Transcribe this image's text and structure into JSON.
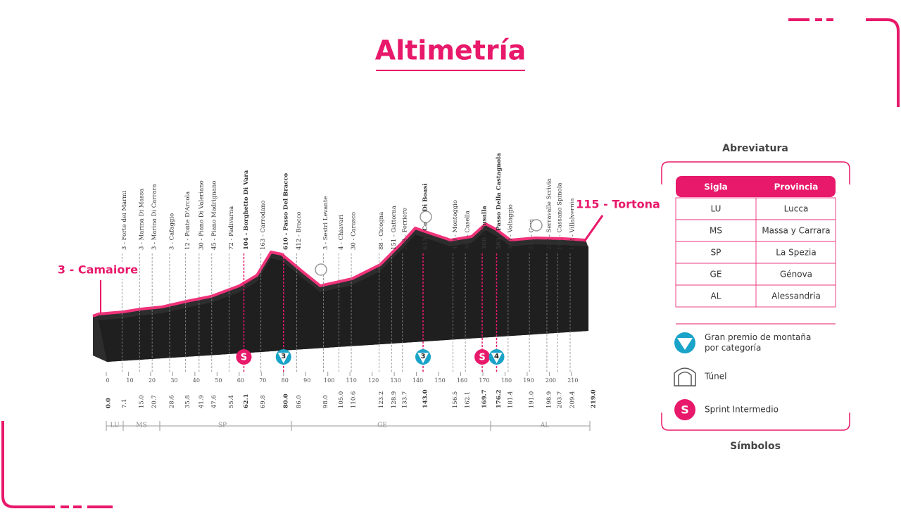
{
  "title": "Altimetría",
  "profile": {
    "start": "3 - Camaiore",
    "finish": "115 - Tortona",
    "start_distance": {
      "value": 0,
      "label": "0.0"
    },
    "finish_distance": {
      "value": 219,
      "label": "219.0"
    },
    "waypoints": [
      {
        "label": "3 - Forte dei Marmi",
        "distance": 7.1,
        "highlight": false
      },
      {
        "label": "3 - Marina Di Massa",
        "distance": {
          "value": 15,
          "label": "15.0"
        },
        "highlight": false
      },
      {
        "label": "3 - Marina Di Carrara",
        "distance": 20.7,
        "highlight": false
      },
      {
        "label": "3 - Cafaggio",
        "distance": 28.6,
        "highlight": false
      },
      {
        "label": "12 - Ponte D'Arcola",
        "distance": 35.8,
        "highlight": false
      },
      {
        "label": "30 - Piano Di Valeriano",
        "distance": 41.9,
        "highlight": false
      },
      {
        "label": "45 - Piano Madrignano",
        "distance": 47.6,
        "highlight": false
      },
      {
        "label": "72 - Padivarna",
        "distance": 55.4,
        "highlight": false
      },
      {
        "label": "104 - Borghetto Di Vara",
        "distance": 62.1,
        "highlight": true
      },
      {
        "label": "163 - Carrodano",
        "distance": 69.8,
        "highlight": false
      },
      {
        "label": "610 - Passo Del Bracco",
        "distance": {
          "value": 80,
          "label": "80.0"
        },
        "highlight": true
      },
      {
        "label": "412 - Bracco",
        "distance": {
          "value": 86,
          "label": "86.0"
        },
        "highlight": false
      },
      {
        "label": "3 - Sestri Levante",
        "distance": {
          "value": 98,
          "label": "98.0"
        },
        "highlight": false
      },
      {
        "label": "4 - Chiavari",
        "distance": {
          "value": 105,
          "label": "105.0"
        },
        "highlight": false
      },
      {
        "label": "30 - Carasco",
        "distance": 110.6,
        "highlight": false
      },
      {
        "label": "88 - Cicogna",
        "distance": 123.2,
        "highlight": false
      },
      {
        "label": "151 - Gattorna",
        "distance": 128.9,
        "highlight": false
      },
      {
        "label": "228 - Ferriere",
        "distance": 133.7,
        "highlight": false
      },
      {
        "label": "615 - Colla Di Boasi",
        "distance": {
          "value": 143,
          "label": "143.0"
        },
        "highlight": true
      },
      {
        "label": "438 - Montoggio",
        "distance": 156.5,
        "highlight": false
      },
      {
        "label": "399 - Casella",
        "distance": 162.1,
        "highlight": false
      },
      {
        "label": "368 - Busalla",
        "distance": 169.7,
        "highlight": true
      },
      {
        "label": "583 - Passo Della Castagnola",
        "distance": 176.2,
        "highlight": true
      },
      {
        "label": "348 - Voltaggio",
        "distance": 181.4,
        "highlight": false
      },
      {
        "label": "231 - Gavi",
        "distance": {
          "value": 191,
          "label": "191.0"
        },
        "highlight": false
      },
      {
        "label": "222 - Serravalle Scrivia",
        "distance": 198.9,
        "highlight": false
      },
      {
        "label": "191 - Cassano Spinola",
        "distance": 203.7,
        "highlight": false
      },
      {
        "label": "162 - Villalvernia",
        "distance": 209.4,
        "highlight": false
      }
    ],
    "scale": [
      0,
      10,
      20,
      30,
      40,
      50,
      60,
      70,
      80,
      90,
      100,
      110,
      120,
      130,
      140,
      150,
      160,
      170,
      180,
      190,
      200,
      210
    ],
    "markers": [
      {
        "kind": "sprint",
        "label": "S",
        "distance": 62.1
      },
      {
        "kind": "climb",
        "label": "3",
        "distance": 80
      },
      {
        "kind": "climb",
        "label": "3",
        "distance": 143
      },
      {
        "kind": "sprint",
        "label": "S",
        "distance": 169.7
      },
      {
        "kind": "climb",
        "label": "4",
        "distance": 176.2
      }
    ],
    "provinces": [
      "LU",
      "MS",
      "SP",
      "GE",
      "AL"
    ]
  },
  "abbreviations": {
    "title": "Abreviatura",
    "headers": [
      "Sigla",
      "Provincia"
    ],
    "rows": [
      [
        "LU",
        "Lucca"
      ],
      [
        "MS",
        "Massa y Carrara"
      ],
      [
        "SP",
        "La Spezia"
      ],
      [
        "GE",
        "Génova"
      ],
      [
        "AL",
        "Alessandria"
      ]
    ]
  },
  "symbols": {
    "title": "Símbolos",
    "items": [
      {
        "lines": [
          "Gran premio de montaña",
          "por categoría"
        ]
      },
      {
        "lines": [
          "Túnel"
        ]
      },
      {
        "lines": [
          "Sprint Intermedio"
        ]
      }
    ]
  }
}
